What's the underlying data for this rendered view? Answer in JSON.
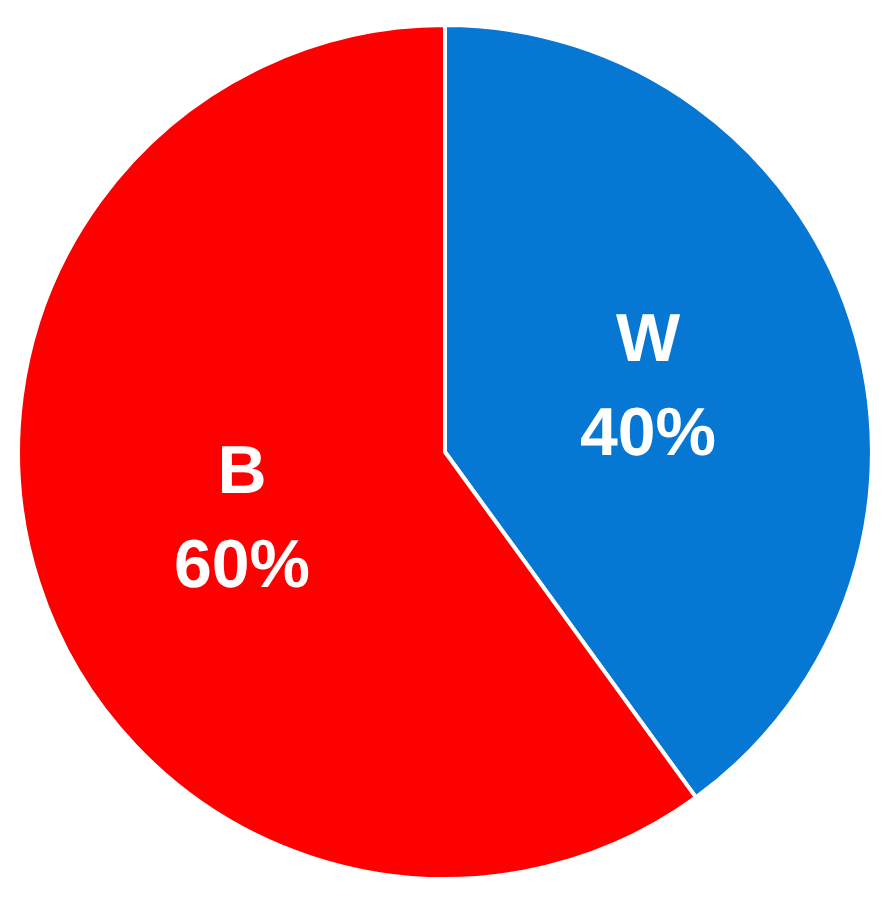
{
  "chart_data": {
    "type": "pie",
    "categories": [
      "W",
      "B"
    ],
    "values": [
      40,
      60
    ],
    "value_labels": [
      "40%",
      "60%"
    ],
    "colors": [
      "#0677d3",
      "#ff0000"
    ]
  }
}
